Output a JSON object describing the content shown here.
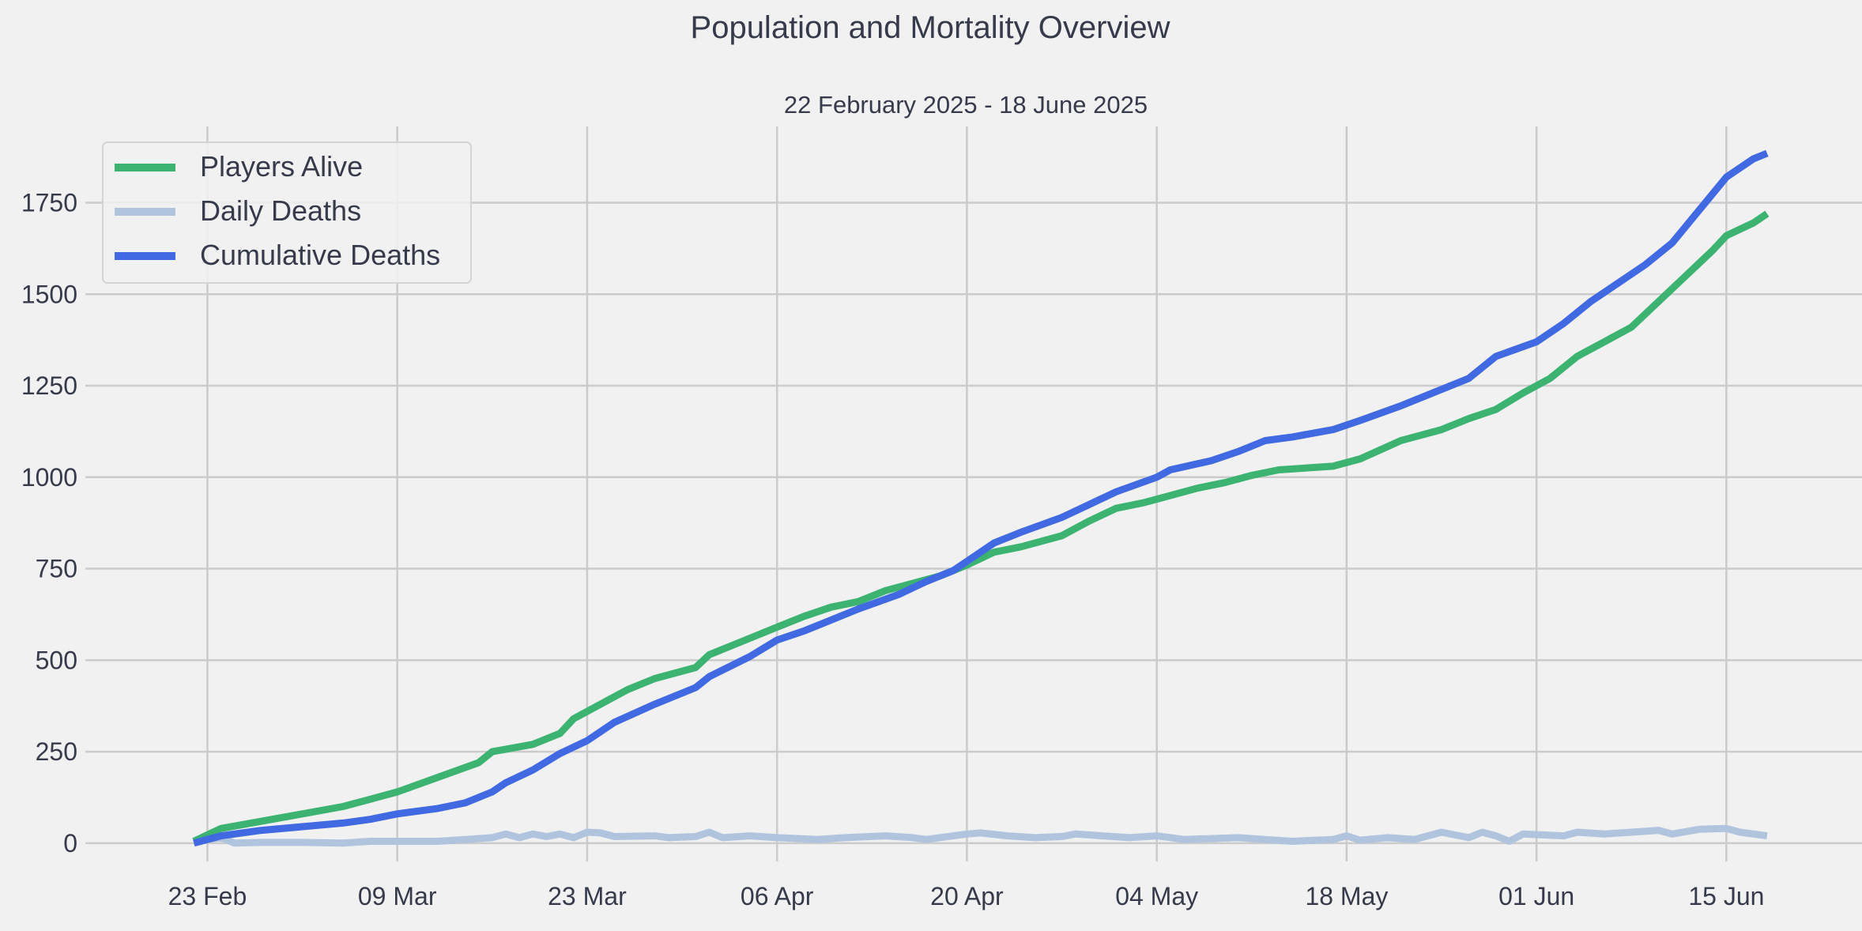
{
  "chart_data": {
    "type": "line",
    "title": "Population and Mortality Overview",
    "subtitle": "22 February 2025 - 18 June 2025",
    "xlabel": "",
    "ylabel": "",
    "x_start": "2025-02-22",
    "x_end": "2025-06-18",
    "xlim": [
      "2025-02-14",
      "2025-06-25"
    ],
    "ylim": [
      -50,
      1980
    ],
    "x_ticks": [
      {
        "date": "2025-02-23",
        "label": "23 Feb"
      },
      {
        "date": "2025-03-09",
        "label": "09 Mar"
      },
      {
        "date": "2025-03-23",
        "label": "23 Mar"
      },
      {
        "date": "2025-04-06",
        "label": "06 Apr"
      },
      {
        "date": "2025-04-20",
        "label": "20 Apr"
      },
      {
        "date": "2025-05-04",
        "label": "04 May"
      },
      {
        "date": "2025-05-18",
        "label": "18 May"
      },
      {
        "date": "2025-06-01",
        "label": "01 Jun"
      },
      {
        "date": "2025-06-15",
        "label": "15 Jun"
      }
    ],
    "y_ticks": [
      {
        "value": 0,
        "label": "0"
      },
      {
        "value": 250,
        "label": "250"
      },
      {
        "value": 500,
        "label": "500"
      },
      {
        "value": 750,
        "label": "750"
      },
      {
        "value": 1000,
        "label": "1000"
      },
      {
        "value": 1250,
        "label": "1250"
      },
      {
        "value": 1500,
        "label": "1500"
      },
      {
        "value": 1750,
        "label": "1750"
      }
    ],
    "grid": true,
    "legend_position": "top-left",
    "series": [
      {
        "name": "Players Alive",
        "color": "#3cb371",
        "points": [
          [
            "2025-02-22",
            5
          ],
          [
            "2025-02-24",
            40
          ],
          [
            "2025-02-27",
            60
          ],
          [
            "2025-03-02",
            80
          ],
          [
            "2025-03-05",
            100
          ],
          [
            "2025-03-07",
            120
          ],
          [
            "2025-03-09",
            140
          ],
          [
            "2025-03-12",
            180
          ],
          [
            "2025-03-15",
            220
          ],
          [
            "2025-03-16",
            250
          ],
          [
            "2025-03-19",
            270
          ],
          [
            "2025-03-21",
            300
          ],
          [
            "2025-03-22",
            340
          ],
          [
            "2025-03-24",
            380
          ],
          [
            "2025-03-26",
            420
          ],
          [
            "2025-03-28",
            450
          ],
          [
            "2025-03-31",
            480
          ],
          [
            "2025-04-01",
            515
          ],
          [
            "2025-04-04",
            560
          ],
          [
            "2025-04-06",
            590
          ],
          [
            "2025-04-08",
            620
          ],
          [
            "2025-04-10",
            645
          ],
          [
            "2025-04-12",
            660
          ],
          [
            "2025-04-14",
            690
          ],
          [
            "2025-04-16",
            710
          ],
          [
            "2025-04-18",
            730
          ],
          [
            "2025-04-20",
            760
          ],
          [
            "2025-04-22",
            795
          ],
          [
            "2025-04-24",
            810
          ],
          [
            "2025-04-27",
            840
          ],
          [
            "2025-04-29",
            880
          ],
          [
            "2025-05-01",
            915
          ],
          [
            "2025-05-03",
            930
          ],
          [
            "2025-05-04",
            940
          ],
          [
            "2025-05-07",
            970
          ],
          [
            "2025-05-09",
            985
          ],
          [
            "2025-05-11",
            1005
          ],
          [
            "2025-05-13",
            1020
          ],
          [
            "2025-05-17",
            1030
          ],
          [
            "2025-05-19",
            1050
          ],
          [
            "2025-05-22",
            1100
          ],
          [
            "2025-05-25",
            1130
          ],
          [
            "2025-05-27",
            1160
          ],
          [
            "2025-05-29",
            1185
          ],
          [
            "2025-05-31",
            1230
          ],
          [
            "2025-06-02",
            1270
          ],
          [
            "2025-06-04",
            1330
          ],
          [
            "2025-06-06",
            1370
          ],
          [
            "2025-06-08",
            1410
          ],
          [
            "2025-06-10",
            1480
          ],
          [
            "2025-06-12",
            1550
          ],
          [
            "2025-06-14",
            1620
          ],
          [
            "2025-06-15",
            1660
          ],
          [
            "2025-06-17",
            1695
          ],
          [
            "2025-06-18",
            1720
          ]
        ]
      },
      {
        "name": "Daily Deaths",
        "color": "#b0c4de",
        "points": [
          [
            "2025-02-22",
            5
          ],
          [
            "2025-02-24",
            15
          ],
          [
            "2025-02-25",
            0
          ],
          [
            "2025-02-27",
            2
          ],
          [
            "2025-03-02",
            2
          ],
          [
            "2025-03-05",
            0
          ],
          [
            "2025-03-07",
            5
          ],
          [
            "2025-03-09",
            5
          ],
          [
            "2025-03-12",
            5
          ],
          [
            "2025-03-14",
            10
          ],
          [
            "2025-03-16",
            15
          ],
          [
            "2025-03-17",
            25
          ],
          [
            "2025-03-18",
            15
          ],
          [
            "2025-03-19",
            25
          ],
          [
            "2025-03-20",
            18
          ],
          [
            "2025-03-21",
            25
          ],
          [
            "2025-03-22",
            15
          ],
          [
            "2025-03-23",
            30
          ],
          [
            "2025-03-24",
            28
          ],
          [
            "2025-03-25",
            18
          ],
          [
            "2025-03-28",
            20
          ],
          [
            "2025-03-29",
            15
          ],
          [
            "2025-03-31",
            18
          ],
          [
            "2025-04-01",
            30
          ],
          [
            "2025-04-02",
            15
          ],
          [
            "2025-04-04",
            20
          ],
          [
            "2025-04-06",
            15
          ],
          [
            "2025-04-09",
            10
          ],
          [
            "2025-04-11",
            15
          ],
          [
            "2025-04-14",
            20
          ],
          [
            "2025-04-16",
            15
          ],
          [
            "2025-04-17",
            10
          ],
          [
            "2025-04-19",
            20
          ],
          [
            "2025-04-20",
            25
          ],
          [
            "2025-04-21",
            28
          ],
          [
            "2025-04-23",
            20
          ],
          [
            "2025-04-25",
            15
          ],
          [
            "2025-04-27",
            18
          ],
          [
            "2025-04-28",
            25
          ],
          [
            "2025-04-30",
            20
          ],
          [
            "2025-05-02",
            15
          ],
          [
            "2025-05-04",
            20
          ],
          [
            "2025-05-06",
            10
          ],
          [
            "2025-05-10",
            15
          ],
          [
            "2025-05-12",
            10
          ],
          [
            "2025-05-14",
            5
          ],
          [
            "2025-05-17",
            10
          ],
          [
            "2025-05-18",
            20
          ],
          [
            "2025-05-19",
            8
          ],
          [
            "2025-05-21",
            15
          ],
          [
            "2025-05-23",
            10
          ],
          [
            "2025-05-25",
            30
          ],
          [
            "2025-05-27",
            15
          ],
          [
            "2025-05-28",
            30
          ],
          [
            "2025-05-29",
            20
          ],
          [
            "2025-05-30",
            5
          ],
          [
            "2025-05-31",
            25
          ],
          [
            "2025-06-03",
            20
          ],
          [
            "2025-06-04",
            30
          ],
          [
            "2025-06-06",
            25
          ],
          [
            "2025-06-08",
            30
          ],
          [
            "2025-06-10",
            35
          ],
          [
            "2025-06-11",
            25
          ],
          [
            "2025-06-13",
            38
          ],
          [
            "2025-06-15",
            40
          ],
          [
            "2025-06-16",
            30
          ],
          [
            "2025-06-18",
            20
          ]
        ]
      },
      {
        "name": "Cumulative Deaths",
        "color": "#4169e1",
        "points": [
          [
            "2025-02-22",
            0
          ],
          [
            "2025-02-24",
            20
          ],
          [
            "2025-02-27",
            35
          ],
          [
            "2025-03-02",
            45
          ],
          [
            "2025-03-05",
            55
          ],
          [
            "2025-03-07",
            65
          ],
          [
            "2025-03-09",
            80
          ],
          [
            "2025-03-12",
            95
          ],
          [
            "2025-03-14",
            110
          ],
          [
            "2025-03-16",
            140
          ],
          [
            "2025-03-17",
            165
          ],
          [
            "2025-03-19",
            200
          ],
          [
            "2025-03-21",
            245
          ],
          [
            "2025-03-23",
            280
          ],
          [
            "2025-03-25",
            330
          ],
          [
            "2025-03-28",
            380
          ],
          [
            "2025-03-31",
            425
          ],
          [
            "2025-04-01",
            455
          ],
          [
            "2025-04-04",
            510
          ],
          [
            "2025-04-06",
            555
          ],
          [
            "2025-04-08",
            580
          ],
          [
            "2025-04-10",
            610
          ],
          [
            "2025-04-12",
            640
          ],
          [
            "2025-04-15",
            680
          ],
          [
            "2025-04-17",
            715
          ],
          [
            "2025-04-19",
            745
          ],
          [
            "2025-04-20",
            770
          ],
          [
            "2025-04-22",
            820
          ],
          [
            "2025-04-24",
            850
          ],
          [
            "2025-04-27",
            890
          ],
          [
            "2025-04-29",
            925
          ],
          [
            "2025-05-01",
            960
          ],
          [
            "2025-05-04",
            1000
          ],
          [
            "2025-05-05",
            1020
          ],
          [
            "2025-05-08",
            1045
          ],
          [
            "2025-05-10",
            1070
          ],
          [
            "2025-05-12",
            1100
          ],
          [
            "2025-05-14",
            1110
          ],
          [
            "2025-05-17",
            1130
          ],
          [
            "2025-05-19",
            1155
          ],
          [
            "2025-05-22",
            1195
          ],
          [
            "2025-05-25",
            1240
          ],
          [
            "2025-05-27",
            1270
          ],
          [
            "2025-05-29",
            1330
          ],
          [
            "2025-06-01",
            1370
          ],
          [
            "2025-06-03",
            1420
          ],
          [
            "2025-06-05",
            1480
          ],
          [
            "2025-06-07",
            1530
          ],
          [
            "2025-06-09",
            1580
          ],
          [
            "2025-06-11",
            1640
          ],
          [
            "2025-06-13",
            1730
          ],
          [
            "2025-06-15",
            1820
          ],
          [
            "2025-06-17",
            1870
          ],
          [
            "2025-06-18",
            1885
          ]
        ]
      }
    ]
  }
}
